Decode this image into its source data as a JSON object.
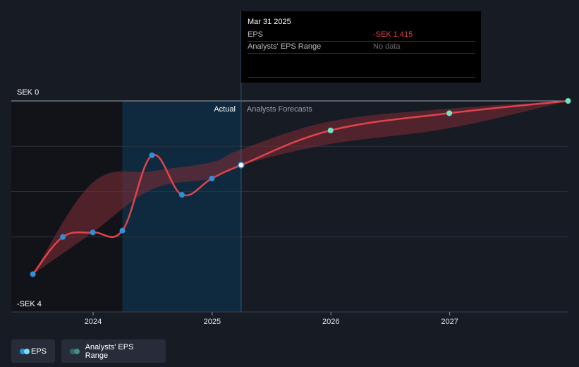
{
  "colors": {
    "background": "#161b24",
    "actual_shade": "#0f2a3f",
    "past_shade": "#111318",
    "eps_line": "#e0434b",
    "range_fill": "#7a2b33",
    "actual_dot": "#2f8fd8",
    "forecast_dot": "#6fe3c3",
    "gridline": "#2c333d",
    "divider": "#2d5a7a",
    "eps_value": "#e9434b",
    "legend_eps_dot1": "#2f8fd8",
    "legend_eps_dot2": "#6fe3ef",
    "legend_range_dot1": "#2c6a66",
    "legend_range_dot2": "#4a8c8c"
  },
  "tooltip": {
    "date": "Mar 31 2025",
    "eps_label": "EPS",
    "eps_value": "-SEK 1.415",
    "range_label": "Analysts' EPS Range",
    "range_value": "No data"
  },
  "labels": {
    "actual": "Actual",
    "forecasts": "Analysts Forecasts"
  },
  "legend": {
    "eps": "EPS",
    "range": "Analysts' EPS Range"
  },
  "chart_data": {
    "type": "line",
    "y_unit": "SEK",
    "ylim": [
      -4,
      0
    ],
    "y_tick_labels": [
      {
        "value": 0,
        "label": "SEK 0"
      },
      {
        "value": -4,
        "label": "-SEK 4"
      }
    ],
    "gridlines_y": [
      0,
      -1,
      -2,
      -3
    ],
    "xlim": [
      "2023-06-30",
      "2027-12-31"
    ],
    "x_ticks": [
      {
        "date": "2024-01-01",
        "label": "2024"
      },
      {
        "date": "2025-01-01",
        "label": "2025"
      },
      {
        "date": "2026-01-01",
        "label": "2026"
      },
      {
        "date": "2027-01-01",
        "label": "2027"
      }
    ],
    "today": "2025-03-31",
    "actual_shade_start": "2024-03-31",
    "series": [
      {
        "name": "EPS",
        "kind": "actual",
        "points": [
          {
            "x": "2023-06-30",
            "y": -3.82
          },
          {
            "x": "2023-09-30",
            "y": -3.0
          },
          {
            "x": "2023-12-31",
            "y": -2.9
          },
          {
            "x": "2024-03-31",
            "y": -2.86
          },
          {
            "x": "2024-06-30",
            "y": -1.2
          },
          {
            "x": "2024-09-30",
            "y": -2.07
          },
          {
            "x": "2024-12-31",
            "y": -1.71
          },
          {
            "x": "2025-03-31",
            "y": -1.415
          }
        ]
      },
      {
        "name": "EPS",
        "kind": "forecast",
        "points": [
          {
            "x": "2025-03-31",
            "y": -1.415
          },
          {
            "x": "2025-12-31",
            "y": -0.65
          },
          {
            "x": "2026-12-31",
            "y": -0.27
          },
          {
            "x": "2027-12-31",
            "y": 0.0
          }
        ]
      }
    ],
    "range_band": [
      {
        "x": "2023-06-30",
        "low": -3.82,
        "high": -3.82
      },
      {
        "x": "2023-12-31",
        "low": -2.9,
        "high": -1.8
      },
      {
        "x": "2024-06-30",
        "low": -1.95,
        "high": -1.55
      },
      {
        "x": "2024-12-31",
        "low": -1.71,
        "high": -1.35
      },
      {
        "x": "2025-03-31",
        "low": -1.415,
        "high": -1.07
      },
      {
        "x": "2025-12-31",
        "low": -0.95,
        "high": -0.45
      },
      {
        "x": "2026-12-31",
        "low": -0.6,
        "high": -0.17
      },
      {
        "x": "2027-12-31",
        "low": 0.0,
        "high": 0.0
      }
    ]
  }
}
